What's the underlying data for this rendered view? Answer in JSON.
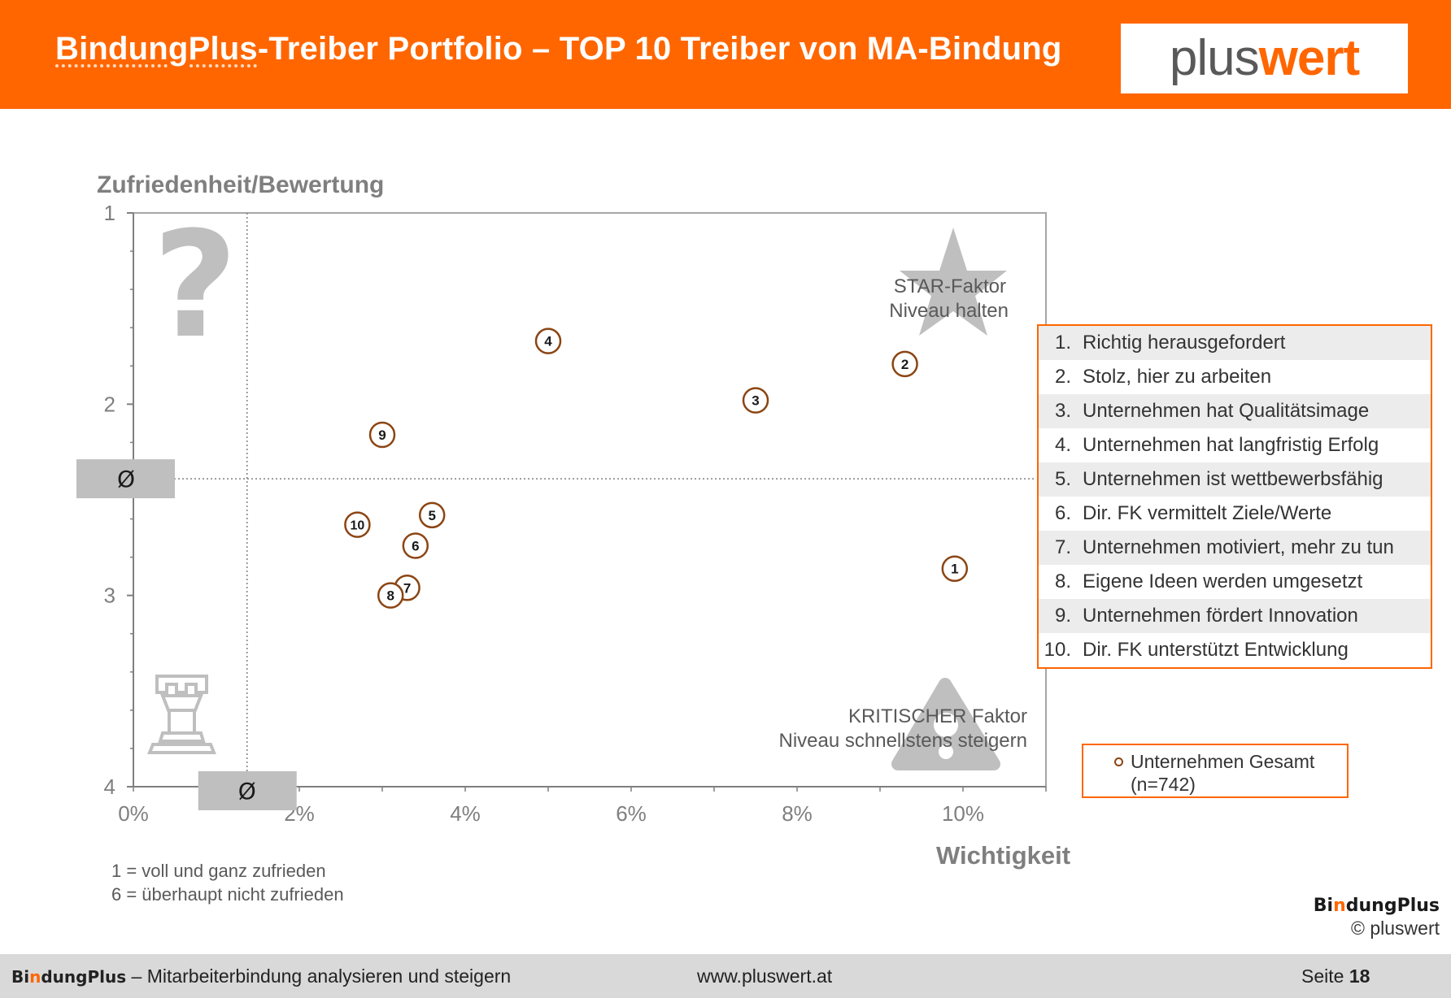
{
  "header": {
    "title_part1": "BindungPlus",
    "title_part2": "-Treiber Portfolio – TOP 10 Treiber von MA-Bindung",
    "logo_part1": "plus",
    "logo_part2": "wert"
  },
  "chart_data": {
    "type": "scatter",
    "ylabel": "Zufriedenheit/Bewertung",
    "xlabel": "Wichtigkeit",
    "xlim": [
      0,
      11
    ],
    "ylim": [
      1,
      4
    ],
    "y_reversed": true,
    "x_ticks": [
      0,
      2,
      4,
      6,
      8,
      10
    ],
    "x_tick_labels": [
      "0%",
      "2%",
      "4%",
      "6%",
      "8%",
      "10%"
    ],
    "y_ticks": [
      1,
      2,
      3,
      4
    ],
    "y_tick_labels": [
      "1",
      "2",
      "3",
      "4"
    ],
    "avg_x": 1.37,
    "avg_y": 2.39,
    "avg_label": "Ø",
    "series": [
      {
        "name": "Unternehmen Gesamt",
        "points": [
          {
            "label": "1",
            "x": 9.9,
            "y": 2.86
          },
          {
            "label": "2",
            "x": 9.3,
            "y": 1.79
          },
          {
            "label": "3",
            "x": 7.5,
            "y": 1.98
          },
          {
            "label": "4",
            "x": 5.0,
            "y": 1.67
          },
          {
            "label": "5",
            "x": 3.6,
            "y": 2.58
          },
          {
            "label": "6",
            "x": 3.4,
            "y": 2.74
          },
          {
            "label": "7",
            "x": 3.3,
            "y": 2.96
          },
          {
            "label": "8",
            "x": 3.1,
            "y": 3.0
          },
          {
            "label": "9",
            "x": 3.0,
            "y": 2.16
          },
          {
            "label": "10",
            "x": 2.7,
            "y": 2.63
          }
        ]
      }
    ],
    "annotations": {
      "star_line1": "STAR-Faktor",
      "star_line2": "Niveau halten",
      "critical_line1": "KRITISCHER Faktor",
      "critical_line2": "Niveau schnellstens steigern",
      "question_mark": "?"
    },
    "icons": [
      "question-mark-icon",
      "star-icon",
      "rook-icon",
      "warning-triangle-icon"
    ],
    "grid": false
  },
  "legend": {
    "items": [
      {
        "num": "1.",
        "text": "Richtig herausgefordert"
      },
      {
        "num": "2.",
        "text": "Stolz, hier zu arbeiten"
      },
      {
        "num": "3.",
        "text": "Unternehmen hat Qualitätsimage"
      },
      {
        "num": "4.",
        "text": "Unternehmen hat langfristig Erfolg"
      },
      {
        "num": "5.",
        "text": "Unternehmen ist wettbewerbsfähig"
      },
      {
        "num": "6.",
        "text": "Dir. FK vermittelt Ziele/Werte"
      },
      {
        "num": "7.",
        "text": "Unternehmen motiviert, mehr zu tun"
      },
      {
        "num": "8.",
        "text": "Eigene Ideen werden umgesetzt"
      },
      {
        "num": "9.",
        "text": "Unternehmen fördert Innovation"
      },
      {
        "num": "10.",
        "text": "Dir. FK unterstützt Entwicklung"
      }
    ],
    "series_name": "Unternehmen Gesamt",
    "series_n": "(n=742)"
  },
  "notes": {
    "line1": "1 = voll und ganz zufrieden",
    "line2": "6 = überhaupt nicht zufrieden"
  },
  "branding": {
    "brand_bin": "Bi",
    "brand_n": "n",
    "brand_rest": "dungPlus",
    "copyright": "© pluswert"
  },
  "footer": {
    "left_text": " – Mitarbeiterbindung analysieren und steigern",
    "center_text": "www.pluswert.at",
    "page_label": "Seite ",
    "page_number": "18"
  },
  "colors": {
    "accent": "#ff6600",
    "marker": "#8b4513",
    "icon_gray": "#bfbfbf",
    "avg_box": "#bfbfbf"
  }
}
